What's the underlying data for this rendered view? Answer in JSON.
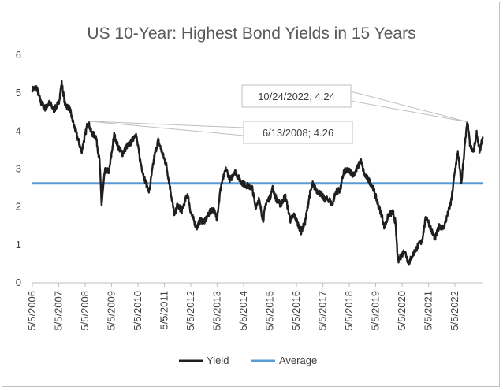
{
  "chart_data": {
    "type": "line",
    "title": "US 10-Year: Highest Bond Yields in 15 Years",
    "xlabel": "",
    "ylabel": "",
    "ylim": [
      0,
      6
    ],
    "yticks": [
      "0",
      "1",
      "2",
      "3",
      "4",
      "5",
      "6"
    ],
    "x_tick_labels": [
      "5/5/2006",
      "5/5/2007",
      "5/5/2008",
      "5/5/2009",
      "5/5/2010",
      "5/5/2011",
      "5/5/2012",
      "5/5/2013",
      "5/5/2014",
      "5/5/2015",
      "5/5/2016",
      "5/5/2017",
      "5/5/2018",
      "5/5/2019",
      "5/5/2020",
      "5/5/2021",
      "5/5/2022"
    ],
    "grid": false,
    "legend_position": "bottom",
    "series": [
      {
        "name": "Yield",
        "color": "#1f1f1f",
        "x": [
          "2006-05-05",
          "2006-07-01",
          "2006-09-01",
          "2006-11-01",
          "2007-01-01",
          "2007-03-01",
          "2007-05-05",
          "2007-06-15",
          "2007-08-01",
          "2007-10-01",
          "2007-12-01",
          "2008-02-01",
          "2008-03-15",
          "2008-05-05",
          "2008-06-13",
          "2008-08-01",
          "2008-10-01",
          "2008-11-20",
          "2008-12-18",
          "2009-02-01",
          "2009-04-01",
          "2009-06-10",
          "2009-08-01",
          "2009-10-01",
          "2009-12-01",
          "2010-02-01",
          "2010-04-05",
          "2010-06-01",
          "2010-08-01",
          "2010-10-07",
          "2010-12-15",
          "2011-02-08",
          "2011-04-01",
          "2011-06-01",
          "2011-08-01",
          "2011-09-22",
          "2011-11-01",
          "2012-01-01",
          "2012-03-20",
          "2012-05-05",
          "2012-07-24",
          "2012-09-15",
          "2012-11-15",
          "2013-01-15",
          "2013-03-10",
          "2013-05-01",
          "2013-06-25",
          "2013-09-05",
          "2013-11-01",
          "2014-01-01",
          "2014-03-01",
          "2014-05-05",
          "2014-07-01",
          "2014-09-01",
          "2014-10-15",
          "2014-12-01",
          "2015-01-30",
          "2015-03-10",
          "2015-05-05",
          "2015-06-10",
          "2015-08-01",
          "2015-10-01",
          "2015-12-01",
          "2016-02-11",
          "2016-04-01",
          "2016-07-08",
          "2016-09-01",
          "2016-11-01",
          "2016-12-15",
          "2017-02-01",
          "2017-04-01",
          "2017-06-01",
          "2017-08-01",
          "2017-09-08",
          "2017-11-01",
          "2018-01-01",
          "2018-02-21",
          "2018-05-05",
          "2018-07-01",
          "2018-09-01",
          "2018-10-08",
          "2018-12-01",
          "2019-02-01",
          "2019-04-01",
          "2019-06-01",
          "2019-08-01",
          "2019-09-03",
          "2019-11-01",
          "2020-01-01",
          "2020-02-01",
          "2020-03-09",
          "2020-04-01",
          "2020-06-08",
          "2020-08-04",
          "2020-10-01",
          "2020-12-01",
          "2021-02-01",
          "2021-03-31",
          "2021-05-05",
          "2021-07-01",
          "2021-08-04",
          "2021-10-01",
          "2021-12-01",
          "2022-02-01",
          "2022-03-15",
          "2022-05-05",
          "2022-06-14",
          "2022-08-01",
          "2022-09-15",
          "2022-10-24",
          "2022-12-01",
          "2023-01-15",
          "2023-03-01",
          "2023-04-15",
          "2023-05-25"
        ],
        "y": [
          5.1,
          5.15,
          4.75,
          4.6,
          4.75,
          4.55,
          4.75,
          5.26,
          4.7,
          4.6,
          4.15,
          3.75,
          3.45,
          3.9,
          4.26,
          3.95,
          3.85,
          3.2,
          2.05,
          2.95,
          2.95,
          3.9,
          3.6,
          3.4,
          3.6,
          3.7,
          3.95,
          3.25,
          2.75,
          2.4,
          3.3,
          3.75,
          3.45,
          3.1,
          2.4,
          1.75,
          2.05,
          1.9,
          2.35,
          1.85,
          1.45,
          1.65,
          1.62,
          1.85,
          1.95,
          1.7,
          2.55,
          3.0,
          2.7,
          2.95,
          2.75,
          2.6,
          2.55,
          2.5,
          2.0,
          2.2,
          1.65,
          2.1,
          2.25,
          2.5,
          2.2,
          2.05,
          2.3,
          1.65,
          1.8,
          1.35,
          1.6,
          2.3,
          2.6,
          2.45,
          2.35,
          2.2,
          2.2,
          2.05,
          2.4,
          2.45,
          2.95,
          2.95,
          2.85,
          3.05,
          3.24,
          2.85,
          2.7,
          2.5,
          2.1,
          1.75,
          1.46,
          1.8,
          1.85,
          1.6,
          0.55,
          0.65,
          0.85,
          0.52,
          0.75,
          0.95,
          1.1,
          1.74,
          1.6,
          1.3,
          1.17,
          1.5,
          1.45,
          1.85,
          2.15,
          2.95,
          3.45,
          2.6,
          3.55,
          4.24,
          3.6,
          3.45,
          3.95,
          3.45,
          3.85
        ]
      },
      {
        "name": "Average",
        "color": "#5b9bd5",
        "constant": 2.62
      }
    ],
    "annotations": [
      {
        "text": "10/24/2022; 4.24",
        "x": "2022-10-24",
        "y": 4.24
      },
      {
        "text": "6/13/2008; 4.26",
        "x": "2008-06-13",
        "y": 4.26
      }
    ]
  }
}
